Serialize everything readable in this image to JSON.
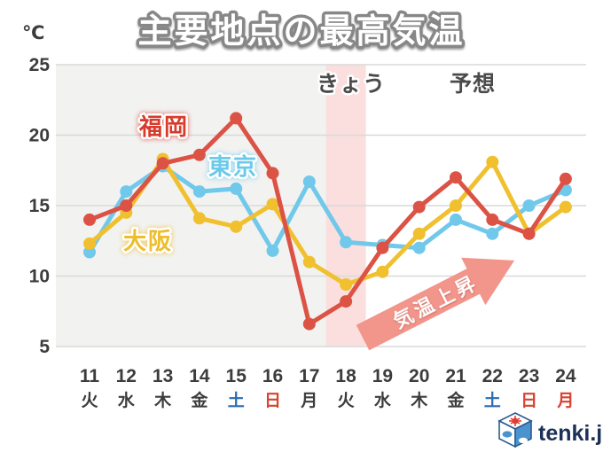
{
  "header": {
    "unit_label": "℃",
    "title": "主要地点の最高気温"
  },
  "annotations": {
    "today_label": "きょう",
    "forecast_label": "予想",
    "arrow_label": "気温上昇"
  },
  "logo": {
    "text": "tenki.jp"
  },
  "chart_data": {
    "type": "line",
    "title": "主要地点の最高気温",
    "ylabel": "℃",
    "ylim": [
      5,
      25
    ],
    "yticks": [
      25,
      20,
      15,
      10,
      5
    ],
    "grid": "horizontal",
    "legend_position": "on-chart",
    "categories": [
      {
        "date": "11",
        "weekday": "火",
        "day_type": "weekday"
      },
      {
        "date": "12",
        "weekday": "水",
        "day_type": "weekday"
      },
      {
        "date": "13",
        "weekday": "木",
        "day_type": "weekday"
      },
      {
        "date": "14",
        "weekday": "金",
        "day_type": "weekday"
      },
      {
        "date": "15",
        "weekday": "土",
        "day_type": "saturday"
      },
      {
        "date": "16",
        "weekday": "日",
        "day_type": "sunday"
      },
      {
        "date": "17",
        "weekday": "月",
        "day_type": "weekday"
      },
      {
        "date": "18",
        "weekday": "火",
        "day_type": "weekday"
      },
      {
        "date": "19",
        "weekday": "水",
        "day_type": "weekday"
      },
      {
        "date": "20",
        "weekday": "木",
        "day_type": "weekday"
      },
      {
        "date": "21",
        "weekday": "金",
        "day_type": "weekday"
      },
      {
        "date": "22",
        "weekday": "土",
        "day_type": "saturday"
      },
      {
        "date": "23",
        "weekday": "日",
        "day_type": "sunday"
      },
      {
        "date": "24",
        "weekday": "月",
        "day_type": "holiday"
      }
    ],
    "series": [
      {
        "id": "fukuoka",
        "name": "福岡",
        "color": "#dc5244",
        "values": [
          14.0,
          15.0,
          18.0,
          18.6,
          21.2,
          17.3,
          6.6,
          8.2,
          12.0,
          14.9,
          17.0,
          14.0,
          13.0,
          16.9
        ]
      },
      {
        "id": "tokyo",
        "name": "東京",
        "color": "#70c8ea",
        "values": [
          11.7,
          16.0,
          17.8,
          16.0,
          16.2,
          11.8,
          16.7,
          12.4,
          12.2,
          12.0,
          14.0,
          13.0,
          15.0,
          16.1
        ]
      },
      {
        "id": "osaka",
        "name": "大阪",
        "color": "#f0c02f",
        "values": [
          12.3,
          14.5,
          18.3,
          14.1,
          13.5,
          15.1,
          11.0,
          9.4,
          10.3,
          13.0,
          15.0,
          18.1,
          13.0,
          14.9
        ]
      }
    ],
    "today_index": 7,
    "weekday_colors": {
      "weekday": "#3c3c3c",
      "saturday": "#2a6cb3",
      "sunday": "#d9432f",
      "holiday": "#d9432f"
    },
    "band_colors": {
      "past": "#f2f2f1",
      "today": "#fbdede"
    }
  }
}
